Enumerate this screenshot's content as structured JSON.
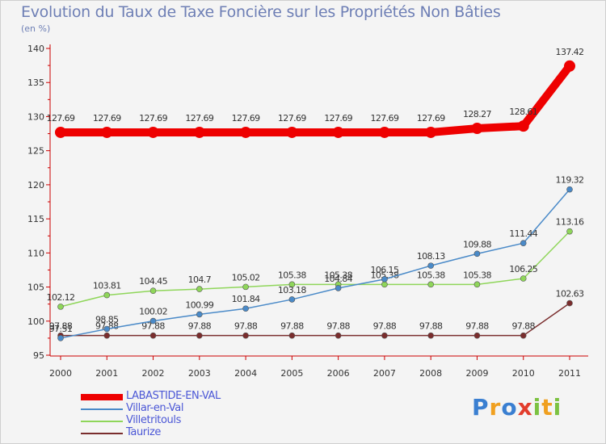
{
  "header": {
    "title": "Evolution du Taux de Taxe Foncière sur les Propriétés Non Bâties",
    "subtitle": "(en %)"
  },
  "chart_data": {
    "type": "line",
    "title": "Evolution du Taux de Taxe Foncière sur les Propriétés Non Bâties",
    "ylabel": "(en %)",
    "xlabel": "",
    "x": [
      "2000",
      "2001",
      "2002",
      "2003",
      "2004",
      "2005",
      "2006",
      "2007",
      "2008",
      "2009",
      "2010",
      "2011"
    ],
    "ylim": [
      95,
      140
    ],
    "yticks": [
      95,
      100,
      105,
      110,
      115,
      120,
      125,
      130,
      135,
      140
    ],
    "grid": false,
    "legend_position": "bottom-left",
    "series": [
      {
        "name": "LABASTIDE-EN-VAL",
        "color": "#ee0000",
        "values": [
          127.69,
          127.69,
          127.69,
          127.69,
          127.69,
          127.69,
          127.69,
          127.69,
          127.69,
          128.27,
          128.61,
          137.42
        ],
        "labels": [
          "127.69",
          "127.69",
          "127.69",
          "127.69",
          "127.69",
          "127.69",
          "127.69",
          "127.69",
          "127.69",
          "128.27",
          "128.61",
          "137.42"
        ]
      },
      {
        "name": "Villar-en-Val",
        "color": "#4a8ac8",
        "values": [
          97.51,
          98.85,
          100.02,
          100.99,
          101.84,
          103.18,
          104.84,
          106.15,
          108.13,
          109.88,
          111.44,
          119.32
        ],
        "labels": [
          "97.51",
          "98.85",
          "100.02",
          "100.99",
          "101.84",
          "103.18",
          "104.84",
          "106.15",
          "108.13",
          "109.88",
          "111.44",
          "119.32"
        ]
      },
      {
        "name": "Villetritouls",
        "color": "#8fd65a",
        "values": [
          102.12,
          103.81,
          104.45,
          104.7,
          105.02,
          105.38,
          105.38,
          105.38,
          105.38,
          105.38,
          106.25,
          113.16
        ],
        "labels": [
          "102.12",
          "103.81",
          "104.45",
          "104.7",
          "105.02",
          "105.38",
          "105.38",
          "105.38",
          "105.38",
          "105.38",
          "106.25",
          "113.16"
        ]
      },
      {
        "name": "Taurize",
        "color": "#7a2d2d",
        "values": [
          97.88,
          97.88,
          97.88,
          97.88,
          97.88,
          97.88,
          97.88,
          97.88,
          97.88,
          97.88,
          97.88,
          102.63
        ],
        "labels": [
          "97.88",
          "97.88",
          "97.88",
          "97.88",
          "97.88",
          "97.88",
          "97.88",
          "97.88",
          "97.88",
          "97.88",
          "97.88",
          "102.63"
        ]
      }
    ]
  },
  "logo": {
    "letters": [
      "P",
      "r",
      "o",
      "x",
      "i",
      "t",
      "i"
    ],
    "colors": [
      "#3a7fd1",
      "#f0a020",
      "#3a7fd1",
      "#e23c2c",
      "#7cc242",
      "#f0a020",
      "#7cc242"
    ]
  }
}
